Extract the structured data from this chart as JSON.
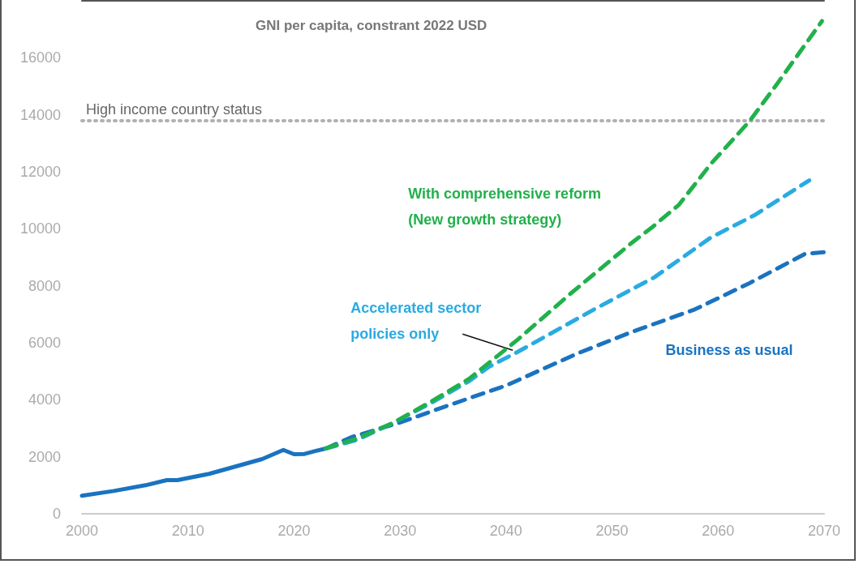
{
  "chart_data": {
    "type": "line",
    "title": "GNI per capita, constrant 2022 USD",
    "xlim": [
      2000,
      2070
    ],
    "xticks": [
      2000,
      2010,
      2020,
      2030,
      2040,
      2050,
      2060,
      2070
    ],
    "ylim": [
      0,
      18000
    ],
    "yticks": [
      0,
      2000,
      4000,
      6000,
      8000,
      10000,
      12000,
      14000,
      16000
    ],
    "grid": false,
    "legend": false,
    "ref_lines": [
      {
        "axis": "y",
        "value": 13800,
        "label": "High income country status",
        "color": "#b0b0b0",
        "line_style": "dotted"
      }
    ],
    "series": [
      {
        "color": "#1a73c0",
        "line_style": "solid",
        "x": [
          2000,
          2003,
          2006,
          2008,
          2009,
          2012,
          2017,
          2019,
          2020,
          2021,
          2022,
          2023
        ],
        "values": [
          630,
          800,
          1000,
          1180,
          1180,
          1400,
          1920,
          2240,
          2090,
          2100,
          2200,
          2290
        ]
      },
      {
        "name": "Business as usual",
        "color": "#1a73c0",
        "line_style": "dashed",
        "x": [
          2023,
          2025.5,
          2030,
          2034,
          2040,
          2046.7,
          2052,
          2057.8,
          2063,
          2068.2,
          2070
        ],
        "values": [
          2290,
          2700,
          3200,
          3730,
          4500,
          5620,
          6400,
          7170,
          8100,
          9120,
          9180
        ]
      },
      {
        "name": "Accelerated sector policies only",
        "color": "#29abe2",
        "line_style": "dashed",
        "x": [
          2023,
          2026,
          2029.3,
          2033,
          2036.5,
          2038.4,
          2041.1,
          2048.3,
          2054,
          2059.3,
          2063.4,
          2068.6
        ],
        "values": [
          2290,
          2600,
          3180,
          3900,
          4650,
          5160,
          5680,
          7170,
          8300,
          9690,
          10470,
          11700
        ]
      },
      {
        "name": "With comprehensive reform (New growth strategy)",
        "color": "#21b14b",
        "line_style": "dashed",
        "x": [
          2023,
          2026,
          2029.3,
          2033,
          2036.5,
          2041.1,
          2046,
          2051.9,
          2053.8,
          2056.3,
          2059.3,
          2063,
          2065.4,
          2069.8
        ],
        "values": [
          2290,
          2650,
          3180,
          3950,
          4730,
          6110,
          7700,
          9520,
          10060,
          10840,
          12270,
          13790,
          15000,
          17290
        ]
      }
    ]
  }
}
